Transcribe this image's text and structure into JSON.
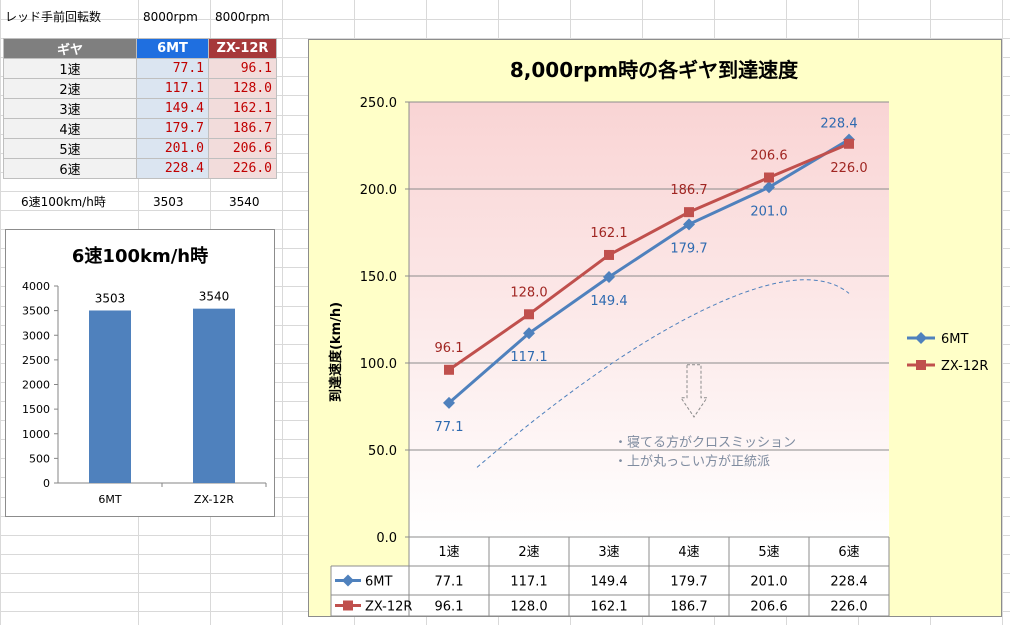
{
  "header_row": {
    "label": "レッド手前回転数",
    "mt_rpm": "8000rpm",
    "zx_rpm": "8000rpm"
  },
  "table": {
    "headers": [
      "ギヤ",
      "6MT",
      "ZX-12R"
    ],
    "header_colors": [
      "#7f7f7f",
      "#1f6fe0",
      "#a6393a"
    ],
    "rows": [
      {
        "gear": "1速",
        "mt": "77.1",
        "zx": "96.1"
      },
      {
        "gear": "2速",
        "mt": "117.1",
        "zx": "128.0"
      },
      {
        "gear": "3速",
        "mt": "149.4",
        "zx": "162.1"
      },
      {
        "gear": "4速",
        "mt": "179.7",
        "zx": "186.7"
      },
      {
        "gear": "5速",
        "mt": "201.0",
        "zx": "206.6"
      },
      {
        "gear": "6速",
        "mt": "228.4",
        "zx": "226.0"
      }
    ]
  },
  "rpm_row": {
    "label": "6速100km/h時",
    "mt": "3503",
    "zx": "3540"
  },
  "chart_data": [
    {
      "type": "bar",
      "title": "6速100km/h時",
      "categories": [
        "6MT",
        "ZX-12R"
      ],
      "values": [
        3503,
        3540
      ],
      "data_labels": [
        "3503",
        "3540"
      ],
      "ylim": [
        0,
        4000
      ],
      "yticks": [
        0,
        500,
        1000,
        1500,
        2000,
        2500,
        3000,
        3500,
        4000
      ],
      "bar_color": "#4f81bd",
      "grid": false
    },
    {
      "type": "line",
      "title": "8,000rpm時の各ギヤ到達速度",
      "ylabel": "到達速度(km/h)",
      "xlabel": "",
      "categories": [
        "1速",
        "2速",
        "3速",
        "4速",
        "5速",
        "6速"
      ],
      "ylim": [
        0,
        250
      ],
      "yticks": [
        "0.0",
        "50.0",
        "100.0",
        "150.0",
        "200.0",
        "250.0"
      ],
      "grid": true,
      "legend_position": "right",
      "series": [
        {
          "name": "6MT",
          "color": "#4f81bd",
          "marker": "diamond",
          "values": [
            77.1,
            117.1,
            149.4,
            179.7,
            201.0,
            228.4
          ],
          "labels": [
            "77.1",
            "117.1",
            "149.4",
            "179.7",
            "201.0",
            "228.4"
          ]
        },
        {
          "name": "ZX-12R",
          "color": "#c0504d",
          "marker": "square",
          "values": [
            96.1,
            128.0,
            162.1,
            186.7,
            206.6,
            226.0
          ],
          "labels": [
            "96.1",
            "128.0",
            "162.1",
            "186.7",
            "206.6",
            "226.0"
          ]
        }
      ],
      "annotation_lines": [
        "・寝てる方がクロスミッション",
        "・上が丸っこい方が正統派"
      ]
    }
  ]
}
